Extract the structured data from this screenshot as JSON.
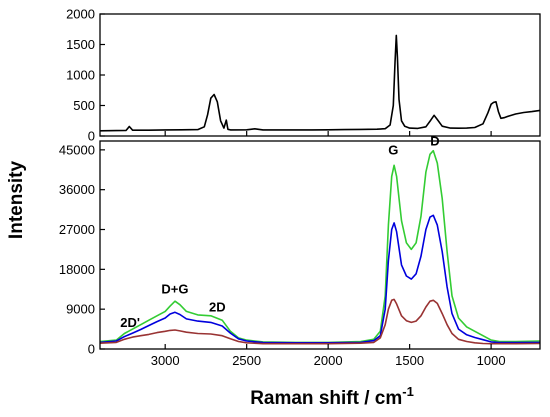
{
  "chart_data": [
    {
      "type": "line",
      "panel": "top",
      "x_reversed": true,
      "xlim": [
        3400,
        700
      ],
      "ylim": [
        0,
        2000
      ],
      "yticks": [
        0,
        500,
        1000,
        1500,
        2000
      ],
      "ylabel": "",
      "xlabel": "",
      "series": [
        {
          "color": "#000000",
          "points": [
            [
              3400,
              85
            ],
            [
              3300,
              88
            ],
            [
              3240,
              92
            ],
            [
              3220,
              155
            ],
            [
              3200,
              95
            ],
            [
              3100,
              95
            ],
            [
              3000,
              100
            ],
            [
              2900,
              102
            ],
            [
              2800,
              105
            ],
            [
              2760,
              150
            ],
            [
              2740,
              350
            ],
            [
              2720,
              620
            ],
            [
              2700,
              680
            ],
            [
              2680,
              560
            ],
            [
              2660,
              250
            ],
            [
              2640,
              130
            ],
            [
              2625,
              260
            ],
            [
              2615,
              110
            ],
            [
              2600,
              100
            ],
            [
              2500,
              102
            ],
            [
              2450,
              118
            ],
            [
              2400,
              100
            ],
            [
              2300,
              100
            ],
            [
              2200,
              100
            ],
            [
              2100,
              100
            ],
            [
              2000,
              102
            ],
            [
              1900,
              105
            ],
            [
              1800,
              108
            ],
            [
              1700,
              112
            ],
            [
              1650,
              120
            ],
            [
              1620,
              180
            ],
            [
              1600,
              500
            ],
            [
              1590,
              1200
            ],
            [
              1582,
              1650
            ],
            [
              1575,
              1300
            ],
            [
              1565,
              600
            ],
            [
              1550,
              250
            ],
            [
              1530,
              160
            ],
            [
              1500,
              130
            ],
            [
              1450,
              125
            ],
            [
              1400,
              150
            ],
            [
              1370,
              260
            ],
            [
              1350,
              340
            ],
            [
              1330,
              270
            ],
            [
              1300,
              160
            ],
            [
              1250,
              130
            ],
            [
              1200,
              128
            ],
            [
              1150,
              130
            ],
            [
              1100,
              140
            ],
            [
              1050,
              200
            ],
            [
              1020,
              380
            ],
            [
              1000,
              520
            ],
            [
              985,
              550
            ],
            [
              970,
              560
            ],
            [
              955,
              400
            ],
            [
              940,
              290
            ],
            [
              920,
              300
            ],
            [
              900,
              320
            ],
            [
              850,
              360
            ],
            [
              800,
              385
            ],
            [
              750,
              400
            ],
            [
              700,
              420
            ]
          ]
        }
      ]
    },
    {
      "type": "line",
      "panel": "bottom",
      "x_reversed": true,
      "xlim": [
        3400,
        700
      ],
      "ylim": [
        0,
        47000
      ],
      "xticks": [
        3000,
        2500,
        2000,
        1500,
        1000
      ],
      "yticks": [
        0,
        9000,
        18000,
        27000,
        36000,
        45000
      ],
      "xlabel": "Raman shift / cm",
      "xlabel_sup": "-1",
      "ylabel": "Intensity",
      "annotations": [
        {
          "text": "2D'",
          "x": 3215,
          "y": 5000
        },
        {
          "text": "D+G",
          "x": 2940,
          "y": 12500
        },
        {
          "text": "2D",
          "x": 2680,
          "y": 8500
        },
        {
          "text": "G",
          "x": 1600,
          "y": 44000
        },
        {
          "text": "D",
          "x": 1345,
          "y": 46000
        }
      ],
      "series": [
        {
          "color": "#33cc33",
          "points": [
            [
              3400,
              1700
            ],
            [
              3300,
              2000
            ],
            [
              3250,
              3500
            ],
            [
              3200,
              4500
            ],
            [
              3150,
              5500
            ],
            [
              3100,
              6500
            ],
            [
              3050,
              7500
            ],
            [
              3000,
              8500
            ],
            [
              2970,
              9700
            ],
            [
              2940,
              10800
            ],
            [
              2910,
              10000
            ],
            [
              2870,
              8500
            ],
            [
              2800,
              7700
            ],
            [
              2720,
              7500
            ],
            [
              2650,
              6500
            ],
            [
              2600,
              4000
            ],
            [
              2550,
              2500
            ],
            [
              2500,
              2000
            ],
            [
              2400,
              1600
            ],
            [
              2200,
              1500
            ],
            [
              2000,
              1500
            ],
            [
              1800,
              1700
            ],
            [
              1720,
              2200
            ],
            [
              1680,
              4000
            ],
            [
              1650,
              12000
            ],
            [
              1630,
              28000
            ],
            [
              1610,
              39000
            ],
            [
              1595,
              41500
            ],
            [
              1580,
              39000
            ],
            [
              1550,
              29000
            ],
            [
              1520,
              24000
            ],
            [
              1490,
              22500
            ],
            [
              1460,
              24000
            ],
            [
              1430,
              30000
            ],
            [
              1400,
              40000
            ],
            [
              1375,
              44000
            ],
            [
              1355,
              44800
            ],
            [
              1330,
              42000
            ],
            [
              1300,
              34000
            ],
            [
              1270,
              22000
            ],
            [
              1240,
              12000
            ],
            [
              1200,
              7000
            ],
            [
              1150,
              5000
            ],
            [
              1100,
              4000
            ],
            [
              1050,
              3000
            ],
            [
              1000,
              2000
            ],
            [
              950,
              1700
            ],
            [
              850,
              1700
            ],
            [
              700,
              1800
            ]
          ]
        },
        {
          "color": "#0000dd",
          "points": [
            [
              3400,
              1500
            ],
            [
              3300,
              1800
            ],
            [
              3250,
              2800
            ],
            [
              3200,
              3600
            ],
            [
              3150,
              4400
            ],
            [
              3100,
              5300
            ],
            [
              3050,
              6200
            ],
            [
              3000,
              7000
            ],
            [
              2970,
              7900
            ],
            [
              2940,
              8300
            ],
            [
              2910,
              7800
            ],
            [
              2870,
              6800
            ],
            [
              2800,
              6300
            ],
            [
              2720,
              6000
            ],
            [
              2650,
              5200
            ],
            [
              2600,
              3600
            ],
            [
              2550,
              2300
            ],
            [
              2500,
              1800
            ],
            [
              2400,
              1450
            ],
            [
              2200,
              1400
            ],
            [
              2000,
              1400
            ],
            [
              1800,
              1500
            ],
            [
              1720,
              1900
            ],
            [
              1680,
              3000
            ],
            [
              1650,
              9000
            ],
            [
              1630,
              20000
            ],
            [
              1610,
              27000
            ],
            [
              1595,
              28500
            ],
            [
              1580,
              26500
            ],
            [
              1550,
              19000
            ],
            [
              1520,
              16500
            ],
            [
              1490,
              15800
            ],
            [
              1460,
              17000
            ],
            [
              1430,
              21000
            ],
            [
              1400,
              27000
            ],
            [
              1375,
              29800
            ],
            [
              1355,
              30200
            ],
            [
              1330,
              28000
            ],
            [
              1300,
              22000
            ],
            [
              1270,
              14000
            ],
            [
              1240,
              8000
            ],
            [
              1200,
              4500
            ],
            [
              1150,
              3200
            ],
            [
              1100,
              2600
            ],
            [
              1050,
              2100
            ],
            [
              1000,
              1600
            ],
            [
              950,
              1450
            ],
            [
              850,
              1450
            ],
            [
              700,
              1500
            ]
          ]
        },
        {
          "color": "#993333",
          "points": [
            [
              3400,
              1300
            ],
            [
              3300,
              1500
            ],
            [
              3250,
              2200
            ],
            [
              3200,
              2700
            ],
            [
              3150,
              3000
            ],
            [
              3100,
              3300
            ],
            [
              3050,
              3700
            ],
            [
              3000,
              4000
            ],
            [
              2970,
              4200
            ],
            [
              2940,
              4300
            ],
            [
              2910,
              4100
            ],
            [
              2870,
              3800
            ],
            [
              2800,
              3500
            ],
            [
              2720,
              3400
            ],
            [
              2650,
              3000
            ],
            [
              2600,
              2300
            ],
            [
              2550,
              1700
            ],
            [
              2500,
              1400
            ],
            [
              2400,
              1200
            ],
            [
              2200,
              1200
            ],
            [
              2000,
              1200
            ],
            [
              1800,
              1300
            ],
            [
              1720,
              1500
            ],
            [
              1680,
              2500
            ],
            [
              1650,
              5500
            ],
            [
              1630,
              9000
            ],
            [
              1610,
              11000
            ],
            [
              1595,
              11200
            ],
            [
              1580,
              10200
            ],
            [
              1550,
              7500
            ],
            [
              1520,
              6400
            ],
            [
              1490,
              6000
            ],
            [
              1460,
              6300
            ],
            [
              1430,
              7500
            ],
            [
              1400,
              9500
            ],
            [
              1375,
              10800
            ],
            [
              1355,
              11000
            ],
            [
              1330,
              10300
            ],
            [
              1300,
              8000
            ],
            [
              1270,
              5500
            ],
            [
              1240,
              3500
            ],
            [
              1200,
              2200
            ],
            [
              1150,
              1700
            ],
            [
              1100,
              1400
            ],
            [
              1050,
              1250
            ],
            [
              1000,
              1200
            ],
            [
              950,
              1200
            ],
            [
              850,
              1200
            ],
            [
              700,
              1250
            ]
          ]
        }
      ]
    }
  ]
}
